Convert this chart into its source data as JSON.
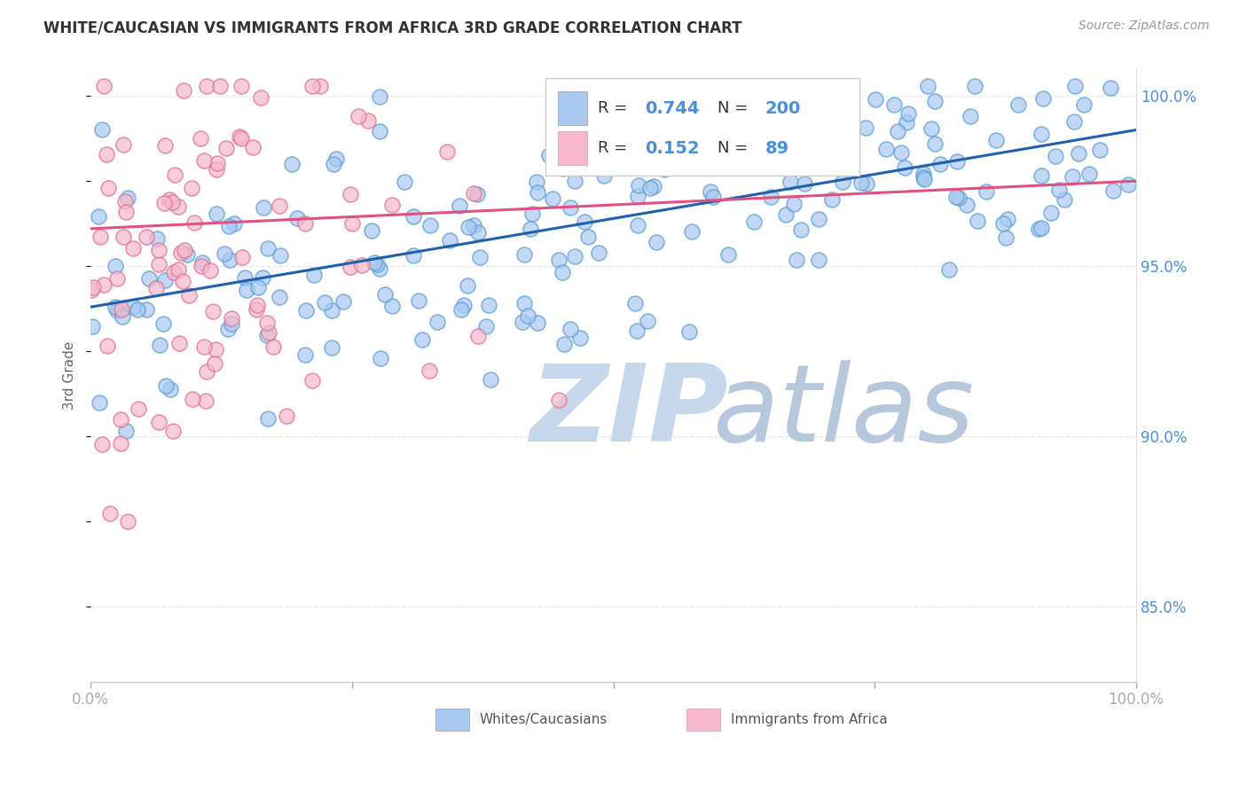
{
  "title": "WHITE/CAUCASIAN VS IMMIGRANTS FROM AFRICA 3RD GRADE CORRELATION CHART",
  "source_text": "Source: ZipAtlas.com",
  "ylabel": "3rd Grade",
  "x_min": 0.0,
  "x_max": 1.0,
  "y_min": 0.828,
  "y_max": 1.008,
  "y_ticks": [
    0.85,
    0.9,
    0.95,
    1.0
  ],
  "y_tick_labels": [
    "85.0%",
    "90.0%",
    "95.0%",
    "100.0%"
  ],
  "blue_color": "#a8c8f0",
  "blue_edge_color": "#5a9fd4",
  "blue_line_color": "#2060b0",
  "pink_color": "#f5b8cc",
  "pink_edge_color": "#e07090",
  "pink_line_color": "#e05080",
  "blue_R": 0.744,
  "blue_N": 200,
  "pink_R": 0.152,
  "pink_N": 89,
  "watermark_zip": "ZIP",
  "watermark_atlas": "atlas",
  "watermark_color_zip": "#c8d8ec",
  "watermark_color_atlas": "#b8c8dc",
  "legend_label_blue": "Whites/Caucasians",
  "legend_label_pink": "Immigrants from Africa",
  "background_color": "#ffffff",
  "grid_color": "#e8e8e8",
  "blue_line_start_y": 0.938,
  "blue_line_end_y": 0.99,
  "pink_line_start_y": 0.961,
  "pink_line_end_y": 0.975
}
